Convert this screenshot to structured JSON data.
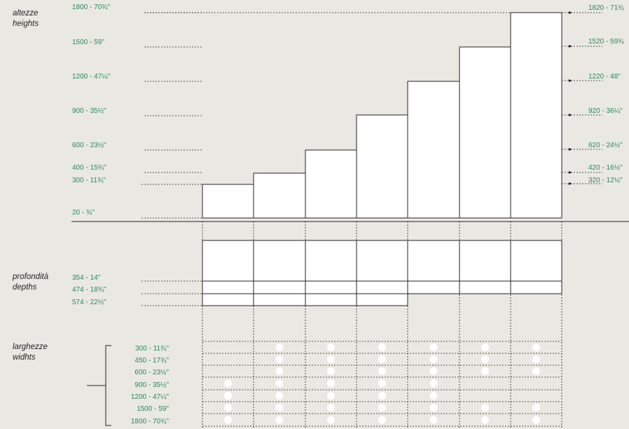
{
  "sections": {
    "heights": {
      "it": "altezze",
      "en": "heights"
    },
    "depths": {
      "it": "profondità",
      "en": "depths"
    },
    "widths": {
      "it": "larghezze",
      "en": "widhts"
    }
  },
  "height_left_labels": [
    "1800 - 70¾\"",
    "1500 - 59\"",
    "1200 - 47¼\"",
    "900 - 35½\"",
    "600 - 23½\"",
    "400 - 15¾\"",
    "300 - 11¾\"",
    "20 - ¾\""
  ],
  "height_right_labels": [
    "1820 - 71¾",
    "1520 - 59¾",
    "1220 - 48\"",
    "920 - 36¼\"",
    "620 - 24½\"",
    "420 - 16½\"",
    "320 - 12½\""
  ],
  "depth_labels": [
    "354 - 14\"",
    "474 - 18¾\"",
    "574 - 22½\""
  ],
  "width_labels": [
    "300 - 11¾\"",
    "450 - 17¾\"",
    "600 - 23½\"",
    "900 - 35½\"",
    "1200 - 47¼\"",
    "1500 - 59\"",
    "1800 - 70¾\""
  ],
  "columns_height_index": [
    6,
    5,
    4,
    3,
    2,
    1,
    0
  ],
  "columns_depth_count": [
    3,
    3,
    3,
    3,
    2,
    2,
    2
  ],
  "availability": [
    [
      0,
      1,
      1,
      1,
      1,
      1,
      1
    ],
    [
      0,
      1,
      1,
      1,
      1,
      1,
      1
    ],
    [
      0,
      1,
      1,
      1,
      1,
      1,
      1
    ],
    [
      1,
      1,
      1,
      1,
      1,
      0,
      0
    ],
    [
      1,
      1,
      1,
      1,
      1,
      0,
      0
    ],
    [
      1,
      1,
      1,
      1,
      1,
      1,
      1
    ],
    [
      1,
      1,
      1,
      1,
      1,
      1,
      1
    ]
  ],
  "colors": {
    "label_green": "#2b8a57",
    "line": "#222222",
    "dot": "#ffffff",
    "background": "#e9e8e3"
  }
}
